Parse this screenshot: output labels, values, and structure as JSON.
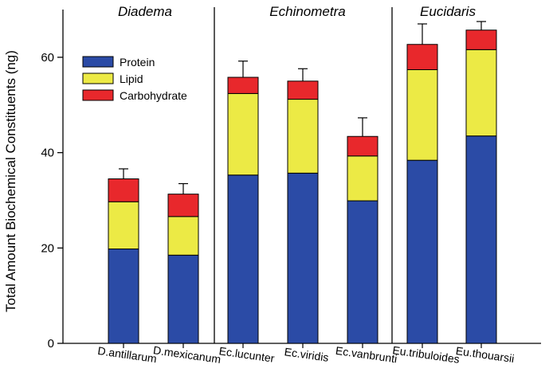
{
  "chart_data": {
    "type": "bar",
    "stacked": true,
    "ylabel": "Total Amount Biochemical Constituents (ng)",
    "xlabel": "",
    "ylim": [
      0,
      72
    ],
    "yticks": [
      0,
      20,
      40,
      60
    ],
    "categories": [
      "D.antillarum",
      "D.mexicanum",
      "Ec.lucunter",
      "Ec.viridis",
      "Ec.vanbrunti",
      "Eu.tribuloides",
      "Eu.thouarsii"
    ],
    "groups": [
      {
        "name": "Diadema",
        "categories": [
          "D.antillarum",
          "D.mexicanum"
        ]
      },
      {
        "name": "Echinometra",
        "categories": [
          "Ec.lucunter",
          "Ec.viridis",
          "Ec.vanbrunti"
        ]
      },
      {
        "name": "Eucidaris",
        "categories": [
          "Eu.tribuloides",
          "Eu.thouarsii"
        ]
      }
    ],
    "series": [
      {
        "name": "Protein",
        "color": "#2b4ba6",
        "values": [
          19.8,
          18.5,
          35.3,
          35.7,
          29.9,
          38.4,
          43.5
        ]
      },
      {
        "name": "Lipid",
        "color": "#ecea45",
        "values": [
          9.9,
          8.1,
          17.1,
          15.5,
          9.4,
          19.0,
          18.1
        ]
      },
      {
        "name": "Carbohydrate",
        "color": "#e8282c",
        "values": [
          4.8,
          4.7,
          3.4,
          3.8,
          4.1,
          5.3,
          4.1
        ]
      }
    ],
    "error_bar_tops": [
      36.6,
      33.5,
      59.2,
      57.6,
      47.3,
      67.0,
      67.5
    ],
    "legend_position": "upper-left",
    "grid": false
  }
}
